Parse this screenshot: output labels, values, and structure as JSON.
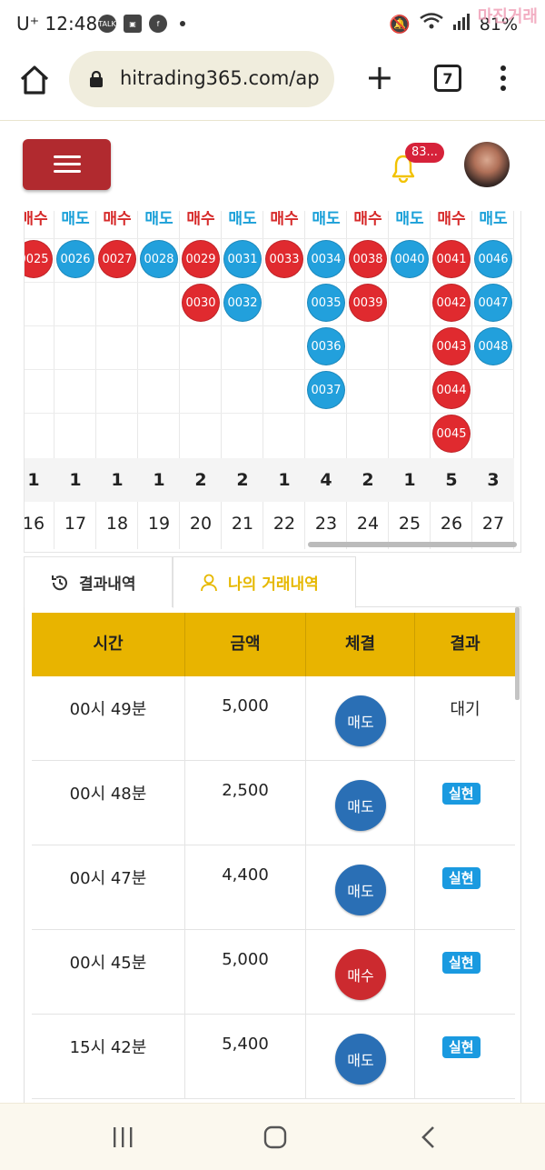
{
  "status_bar": {
    "carrier": "U⁺ 12:48",
    "battery": "81%",
    "watermark": "마진거래"
  },
  "browser": {
    "url": "hitrading365.com/ap",
    "tab_count": "7"
  },
  "header": {
    "notification_count": "83..."
  },
  "grid": {
    "columns": [
      {
        "head": "매수",
        "type": "buy",
        "balls": [
          {
            "n": "0025",
            "c": "red"
          }
        ],
        "count": "1",
        "day": "16"
      },
      {
        "head": "매도",
        "type": "sell",
        "balls": [
          {
            "n": "0026",
            "c": "blue"
          }
        ],
        "count": "1",
        "day": "17"
      },
      {
        "head": "매수",
        "type": "buy",
        "balls": [
          {
            "n": "0027",
            "c": "red"
          }
        ],
        "count": "1",
        "day": "18"
      },
      {
        "head": "매도",
        "type": "sell",
        "balls": [
          {
            "n": "0028",
            "c": "blue"
          }
        ],
        "count": "1",
        "day": "19"
      },
      {
        "head": "매수",
        "type": "buy",
        "balls": [
          {
            "n": "0029",
            "c": "red"
          },
          {
            "n": "0030",
            "c": "red"
          }
        ],
        "count": "2",
        "day": "20"
      },
      {
        "head": "매도",
        "type": "sell",
        "balls": [
          {
            "n": "0031",
            "c": "blue"
          },
          {
            "n": "0032",
            "c": "blue"
          }
        ],
        "count": "2",
        "day": "21"
      },
      {
        "head": "매수",
        "type": "buy",
        "balls": [
          {
            "n": "0033",
            "c": "red"
          }
        ],
        "count": "1",
        "day": "22"
      },
      {
        "head": "매도",
        "type": "sell",
        "balls": [
          {
            "n": "0034",
            "c": "blue"
          },
          {
            "n": "0035",
            "c": "blue"
          },
          {
            "n": "0036",
            "c": "blue"
          },
          {
            "n": "0037",
            "c": "blue"
          }
        ],
        "count": "4",
        "day": "23"
      },
      {
        "head": "매수",
        "type": "buy",
        "balls": [
          {
            "n": "0038",
            "c": "red"
          },
          {
            "n": "0039",
            "c": "red"
          }
        ],
        "count": "2",
        "day": "24"
      },
      {
        "head": "매도",
        "type": "sell",
        "balls": [
          {
            "n": "0040",
            "c": "blue"
          }
        ],
        "count": "1",
        "day": "25"
      },
      {
        "head": "매수",
        "type": "buy",
        "balls": [
          {
            "n": "0041",
            "c": "red"
          },
          {
            "n": "0042",
            "c": "red"
          },
          {
            "n": "0043",
            "c": "red"
          },
          {
            "n": "0044",
            "c": "red"
          },
          {
            "n": "0045",
            "c": "red"
          }
        ],
        "count": "5",
        "day": "26"
      },
      {
        "head": "매도",
        "type": "sell",
        "balls": [
          {
            "n": "0046",
            "c": "blue"
          },
          {
            "n": "0047",
            "c": "blue"
          },
          {
            "n": "0048",
            "c": "blue"
          }
        ],
        "count": "3",
        "day": "27"
      }
    ]
  },
  "tabs": {
    "results": "결과내역",
    "my_trades": "나의 거래내역"
  },
  "table": {
    "headers": [
      "시간",
      "금액",
      "체결",
      "결과"
    ],
    "rows": [
      {
        "time": "00시 49분",
        "amount": "5,000",
        "trade": "매도",
        "trade_type": "sell",
        "result": "대기",
        "result_badge": false
      },
      {
        "time": "00시 48분",
        "amount": "2,500",
        "trade": "매도",
        "trade_type": "sell",
        "result": "실현",
        "result_badge": true
      },
      {
        "time": "00시 47분",
        "amount": "4,400",
        "trade": "매도",
        "trade_type": "sell",
        "result": "실현",
        "result_badge": true
      },
      {
        "time": "00시 45분",
        "amount": "5,000",
        "trade": "매수",
        "trade_type": "buy",
        "result": "실현",
        "result_badge": true
      },
      {
        "time": "15시 42분",
        "amount": "5,400",
        "trade": "매도",
        "trade_type": "sell",
        "result": "실현",
        "result_badge": true
      }
    ]
  },
  "colors": {
    "accent_gold": "#e8b400",
    "buy_red": "#e02a2f",
    "sell_blue": "#22a0dc",
    "menu_red": "#b12a2f"
  }
}
